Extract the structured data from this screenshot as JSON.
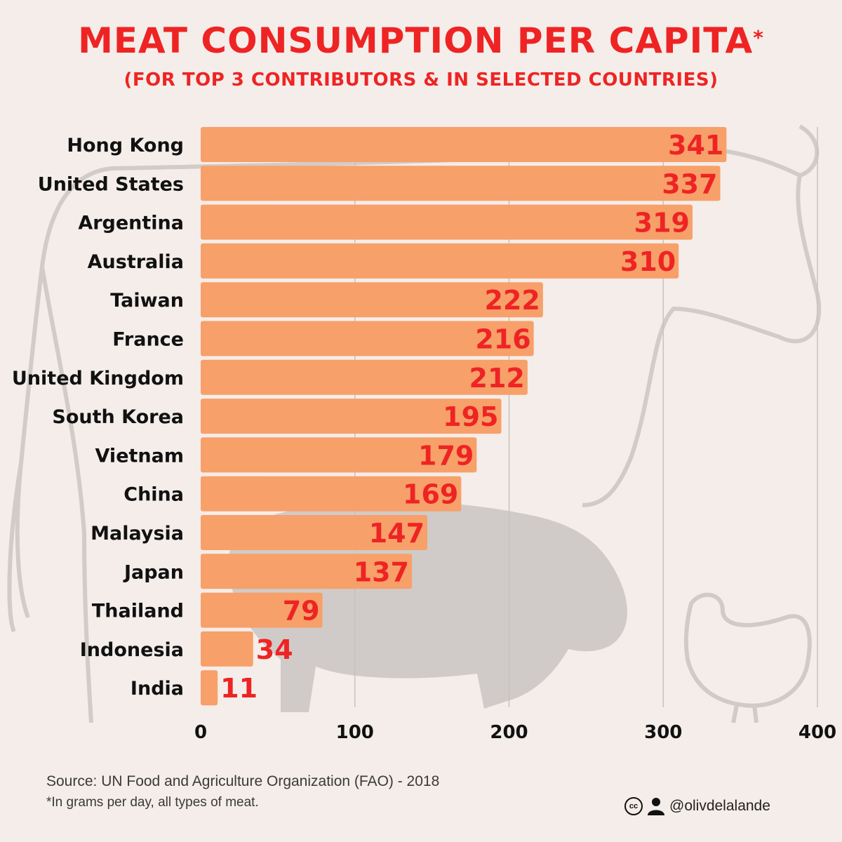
{
  "header": {
    "title": "Meat consumption per capita",
    "title_mark": "*",
    "subtitle": "(for top 3 contributors & in selected countries)"
  },
  "chart_data": {
    "type": "bar",
    "orientation": "horizontal",
    "categories": [
      "Hong Kong",
      "United States",
      "Argentina",
      "Australia",
      "Taiwan",
      "France",
      "United Kingdom",
      "South Korea",
      "Vietnam",
      "China",
      "Malaysia",
      "Japan",
      "Thailand",
      "Indonesia",
      "India"
    ],
    "values": [
      341,
      337,
      319,
      310,
      222,
      216,
      212,
      195,
      179,
      169,
      147,
      137,
      79,
      34,
      11
    ],
    "xlim": [
      0,
      400
    ],
    "xticks": [
      0,
      100,
      200,
      300,
      400
    ],
    "grid": "vertical",
    "bar_color": "#f7a06a",
    "label_color": "#ee2424",
    "title": "",
    "xlabel": "",
    "ylabel": ""
  },
  "footer": {
    "source": "Source: UN Food and Agriculture Organization (FAO) - 2018",
    "footnote": "*In grams per day, all types of meat.",
    "credit_handle": "@olivdelalande"
  },
  "icons": [
    "creative-commons-icon",
    "person-icon",
    "cow-illustration",
    "pig-illustration",
    "hen-illustration"
  ]
}
